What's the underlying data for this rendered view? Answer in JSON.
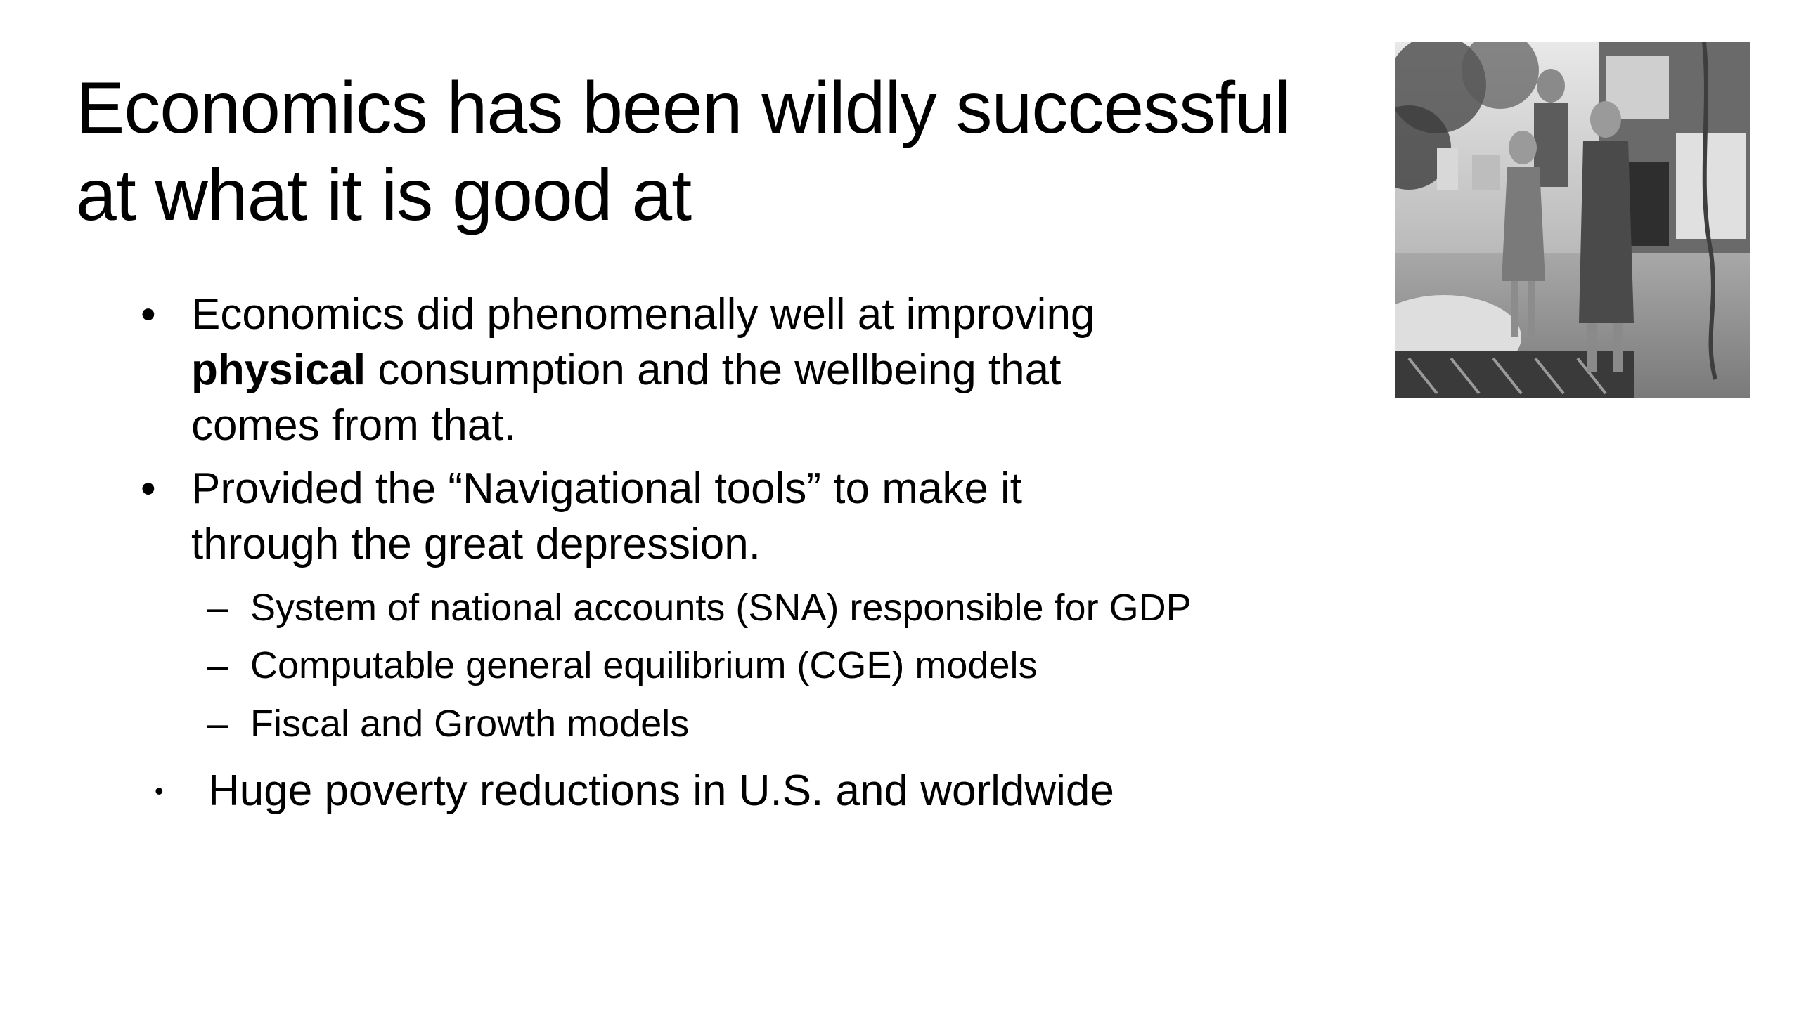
{
  "slide": {
    "title_lines": [
      "Economics has been wildly successful",
      "at what it is good at"
    ],
    "bullets": [
      {
        "mark": "•",
        "line1": "Economics did phenomenally well at improving",
        "line2_bold": "physical",
        "line2_rest": " consumption and the wellbeing that",
        "line3": "comes from that."
      },
      {
        "mark": "•",
        "line1": "Provided the “Navigational tools” to make it",
        "line2": "through the great depression."
      }
    ],
    "sub_bullets": [
      {
        "mark": "–",
        "text": "System of national accounts (SNA) responsible for GDP"
      },
      {
        "mark": "–",
        "text": "Computable general equilibrium (CGE) models"
      },
      {
        "mark": "–",
        "text": "Fiscal and Growth models"
      }
    ],
    "last_bullet": {
      "mark": "•",
      "text": "Huge poverty reductions in U.S. and worldwide"
    }
  },
  "photo": {
    "description_icon": "depression-era-family-photo"
  }
}
